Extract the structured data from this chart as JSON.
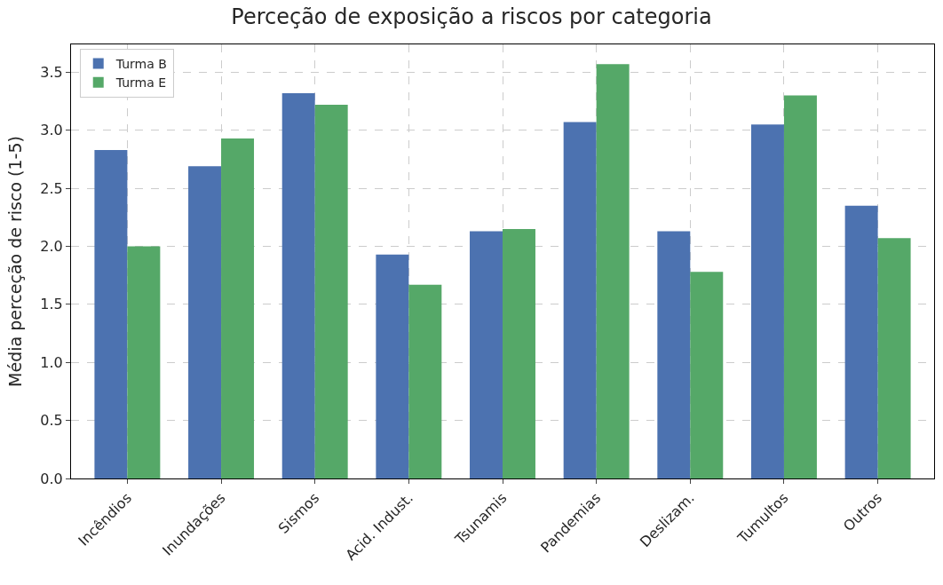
{
  "chart_data": {
    "type": "bar",
    "title": "Perceção de exposição a riscos por categoria",
    "ylabel": "Média perceção de risco (1-5)",
    "categories": [
      "Incêndios",
      "Inundações",
      "Sismos",
      "Acid. Indust.",
      "Tsunamis",
      "Pandemias",
      "Deslizam.",
      "Tumultos",
      "Outros"
    ],
    "series": [
      {
        "name": "Turma B",
        "color": "#4c72b0",
        "values": [
          2.83,
          2.69,
          3.32,
          1.93,
          2.13,
          3.07,
          2.13,
          3.05,
          2.35
        ]
      },
      {
        "name": "Turma E",
        "color": "#55a868",
        "values": [
          2.0,
          2.93,
          3.22,
          1.67,
          2.15,
          3.57,
          1.78,
          3.3,
          2.07
        ]
      }
    ],
    "ylim": [
      0,
      3.74
    ],
    "yticks": [
      {
        "value": 0,
        "label": "0.0"
      },
      {
        "value": 0.5,
        "label": "0.5"
      },
      {
        "value": 1,
        "label": "1.0"
      },
      {
        "value": 1.5,
        "label": "1.5"
      },
      {
        "value": 2,
        "label": "2.0"
      },
      {
        "value": 2.5,
        "label": "2.5"
      },
      {
        "value": 3,
        "label": "3.0"
      },
      {
        "value": 3.5,
        "label": "3.5"
      }
    ],
    "grid": true,
    "legend": "top left"
  }
}
